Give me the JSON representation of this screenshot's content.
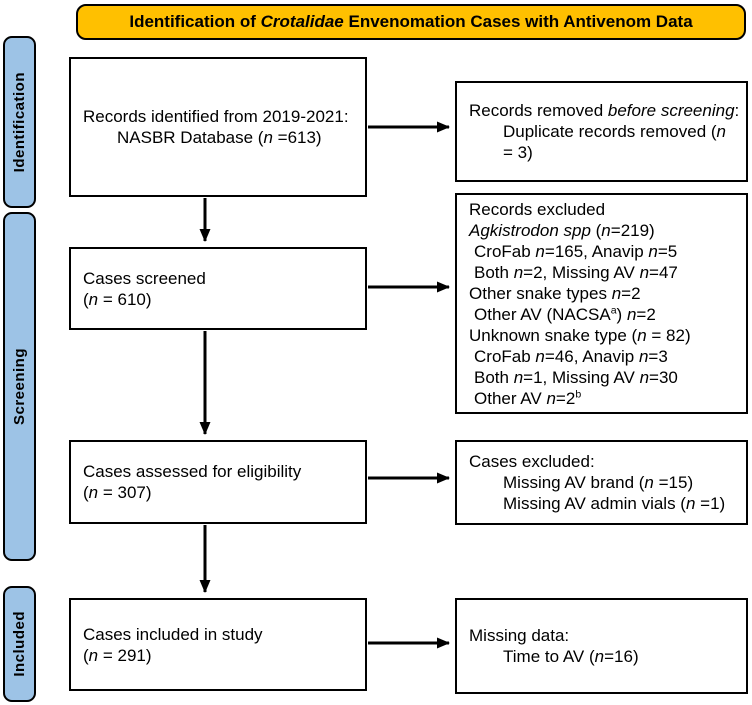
{
  "colors": {
    "banner_bg": "#FFC000",
    "stage_bg": "#9DC3E6",
    "border": "#000000",
    "box_bg": "#FFFFFF"
  },
  "banner": {
    "lines": [
      {
        "indent": 0,
        "segments": [
          {
            "t": "Identification of "
          },
          {
            "t": "Crotalidae",
            "i": true
          },
          {
            "t": " Envenomation Cases with Antivenom Data"
          }
        ]
      }
    ]
  },
  "sidebar": {
    "stages": [
      {
        "label": "Identification"
      },
      {
        "label": "Screening"
      },
      {
        "label": "Included"
      }
    ]
  },
  "flow": {
    "left_boxes": [
      {
        "name": "records-identified",
        "lines": [
          {
            "indent": 0,
            "segments": [
              {
                "t": "Records identified from 2019-2021:"
              }
            ]
          },
          {
            "indent": 34,
            "segments": [
              {
                "t": "NASBR Database ("
              },
              {
                "t": "n",
                "i": true
              },
              {
                "t": " =613)"
              }
            ]
          }
        ]
      },
      {
        "name": "cases-screened",
        "lines": [
          {
            "indent": 0,
            "segments": [
              {
                "t": "Cases screened"
              }
            ]
          },
          {
            "indent": 0,
            "segments": [
              {
                "t": "("
              },
              {
                "t": "n",
                "i": true
              },
              {
                "t": " = 610)"
              }
            ]
          }
        ]
      },
      {
        "name": "cases-assessed",
        "lines": [
          {
            "indent": 0,
            "segments": [
              {
                "t": "Cases assessed for eligibility"
              }
            ]
          },
          {
            "indent": 0,
            "segments": [
              {
                "t": "("
              },
              {
                "t": "n",
                "i": true
              },
              {
                "t": " = 307)"
              }
            ]
          }
        ]
      },
      {
        "name": "cases-included",
        "lines": [
          {
            "indent": 0,
            "segments": [
              {
                "t": "Cases included in study"
              }
            ]
          },
          {
            "indent": 0,
            "segments": [
              {
                "t": "("
              },
              {
                "t": "n",
                "i": true
              },
              {
                "t": " = 291)"
              }
            ]
          }
        ]
      }
    ],
    "right_boxes": [
      {
        "name": "records-removed-before-screening",
        "lines": [
          {
            "indent": 0,
            "segments": [
              {
                "t": "Records removed "
              },
              {
                "t": "before screening",
                "i": true
              },
              {
                "t": ":"
              }
            ]
          },
          {
            "indent": 34,
            "segments": [
              {
                "t": "Duplicate records removed ("
              },
              {
                "t": "n",
                "i": true
              },
              {
                "t": " = 3)"
              }
            ]
          }
        ]
      },
      {
        "name": "records-excluded",
        "lines": [
          {
            "indent": 0,
            "segments": [
              {
                "t": "Records excluded"
              }
            ]
          },
          {
            "indent": 0,
            "segments": [
              {
                "t": "Agkistrodon spp",
                "i": true
              },
              {
                "t": " ("
              },
              {
                "t": "n",
                "i": true
              },
              {
                "t": "=219)"
              }
            ]
          },
          {
            "indent": 5,
            "segments": [
              {
                "t": "CroFab "
              },
              {
                "t": "n",
                "i": true
              },
              {
                "t": "=165, Anavip "
              },
              {
                "t": "n",
                "i": true
              },
              {
                "t": "=5"
              }
            ]
          },
          {
            "indent": 5,
            "segments": [
              {
                "t": "Both "
              },
              {
                "t": "n",
                "i": true
              },
              {
                "t": "=2, Missing AV "
              },
              {
                "t": "n",
                "i": true
              },
              {
                "t": "=47"
              }
            ]
          },
          {
            "indent": 0,
            "segments": [
              {
                "t": "Other snake types "
              },
              {
                "t": "n",
                "i": true
              },
              {
                "t": "=2"
              }
            ]
          },
          {
            "indent": 5,
            "segments": [
              {
                "t": "Other AV (NACSA"
              },
              {
                "t": "a",
                "sup": true
              },
              {
                "t": ") "
              },
              {
                "t": "n",
                "i": true
              },
              {
                "t": "=2"
              }
            ]
          },
          {
            "indent": 0,
            "segments": [
              {
                "t": "Unknown snake type ("
              },
              {
                "t": "n",
                "i": true
              },
              {
                "t": " = 82)"
              }
            ]
          },
          {
            "indent": 5,
            "segments": [
              {
                "t": "CroFab "
              },
              {
                "t": "n",
                "i": true
              },
              {
                "t": "=46, Anavip "
              },
              {
                "t": "n",
                "i": true
              },
              {
                "t": "=3"
              }
            ]
          },
          {
            "indent": 5,
            "segments": [
              {
                "t": "Both "
              },
              {
                "t": "n",
                "i": true
              },
              {
                "t": "=1, Missing AV "
              },
              {
                "t": "n",
                "i": true
              },
              {
                "t": "=30"
              }
            ]
          },
          {
            "indent": 5,
            "segments": [
              {
                "t": "Other AV "
              },
              {
                "t": "n",
                "i": true
              },
              {
                "t": "=2"
              },
              {
                "t": "b",
                "sup": true
              }
            ]
          }
        ]
      },
      {
        "name": "cases-excluded",
        "lines": [
          {
            "indent": 0,
            "segments": [
              {
                "t": "Cases excluded:"
              }
            ]
          },
          {
            "indent": 34,
            "segments": [
              {
                "t": "Missing AV brand ("
              },
              {
                "t": "n",
                "i": true
              },
              {
                "t": " =15)"
              }
            ]
          },
          {
            "indent": 34,
            "segments": [
              {
                "t": "Missing AV admin vials ("
              },
              {
                "t": "n",
                "i": true
              },
              {
                "t": " =1)"
              }
            ]
          }
        ]
      },
      {
        "name": "missing-data",
        "lines": [
          {
            "indent": 0,
            "segments": [
              {
                "t": "Missing data:"
              }
            ]
          },
          {
            "indent": 34,
            "segments": [
              {
                "t": "Time to AV ("
              },
              {
                "t": "n",
                "i": true
              },
              {
                "t": "=16)"
              }
            ]
          }
        ]
      }
    ]
  }
}
